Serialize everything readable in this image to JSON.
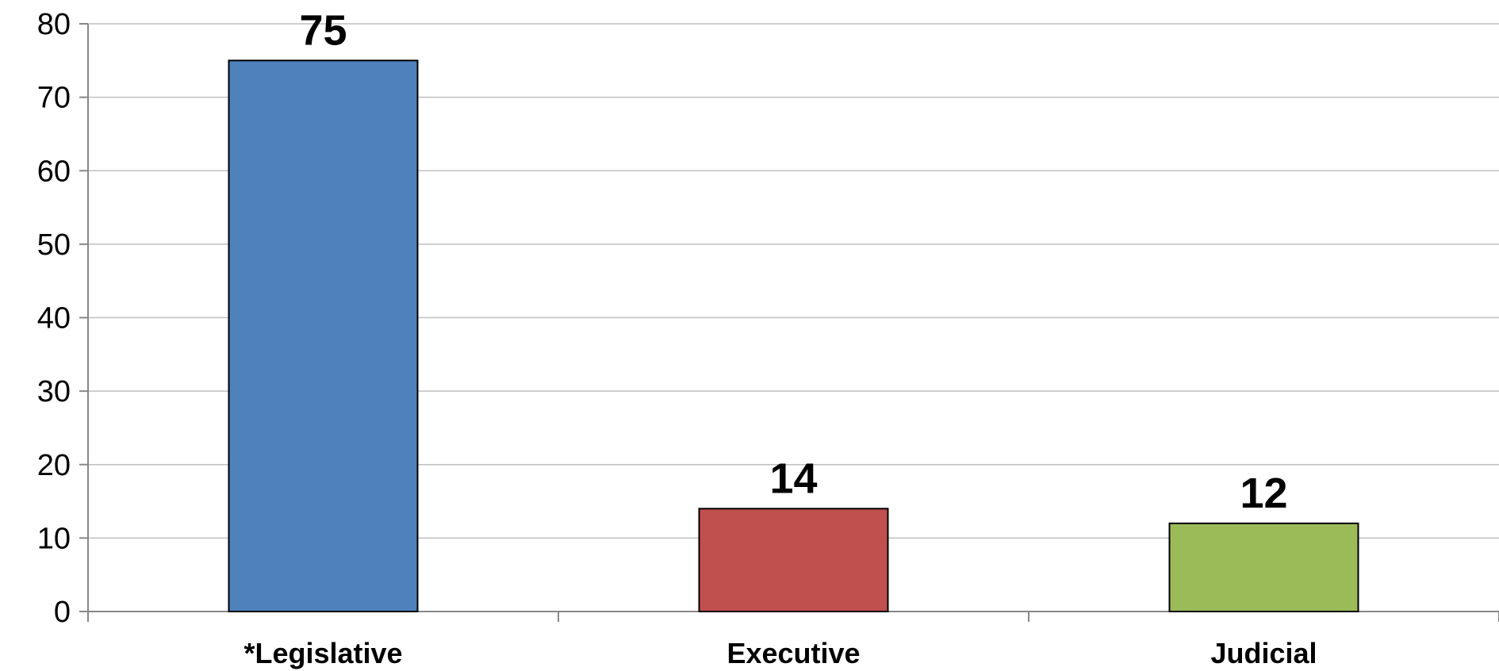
{
  "chart_data": {
    "type": "bar",
    "categories": [
      "*Legislative",
      "Executive",
      "Judicial"
    ],
    "values": [
      75,
      14,
      12
    ],
    "data_labels": [
      "75",
      "14",
      "12"
    ],
    "colors": [
      "#4f81bd",
      "#c0504d",
      "#9bbb59"
    ],
    "ylim": [
      0,
      80
    ],
    "yticks": [
      0,
      10,
      20,
      30,
      40,
      50,
      60,
      70,
      80
    ],
    "ytick_labels": [
      "0",
      "10",
      "20",
      "30",
      "40",
      "50",
      "60",
      "70",
      "80"
    ],
    "grid": true,
    "legend": "none",
    "title": "",
    "xlabel": "",
    "ylabel": ""
  }
}
